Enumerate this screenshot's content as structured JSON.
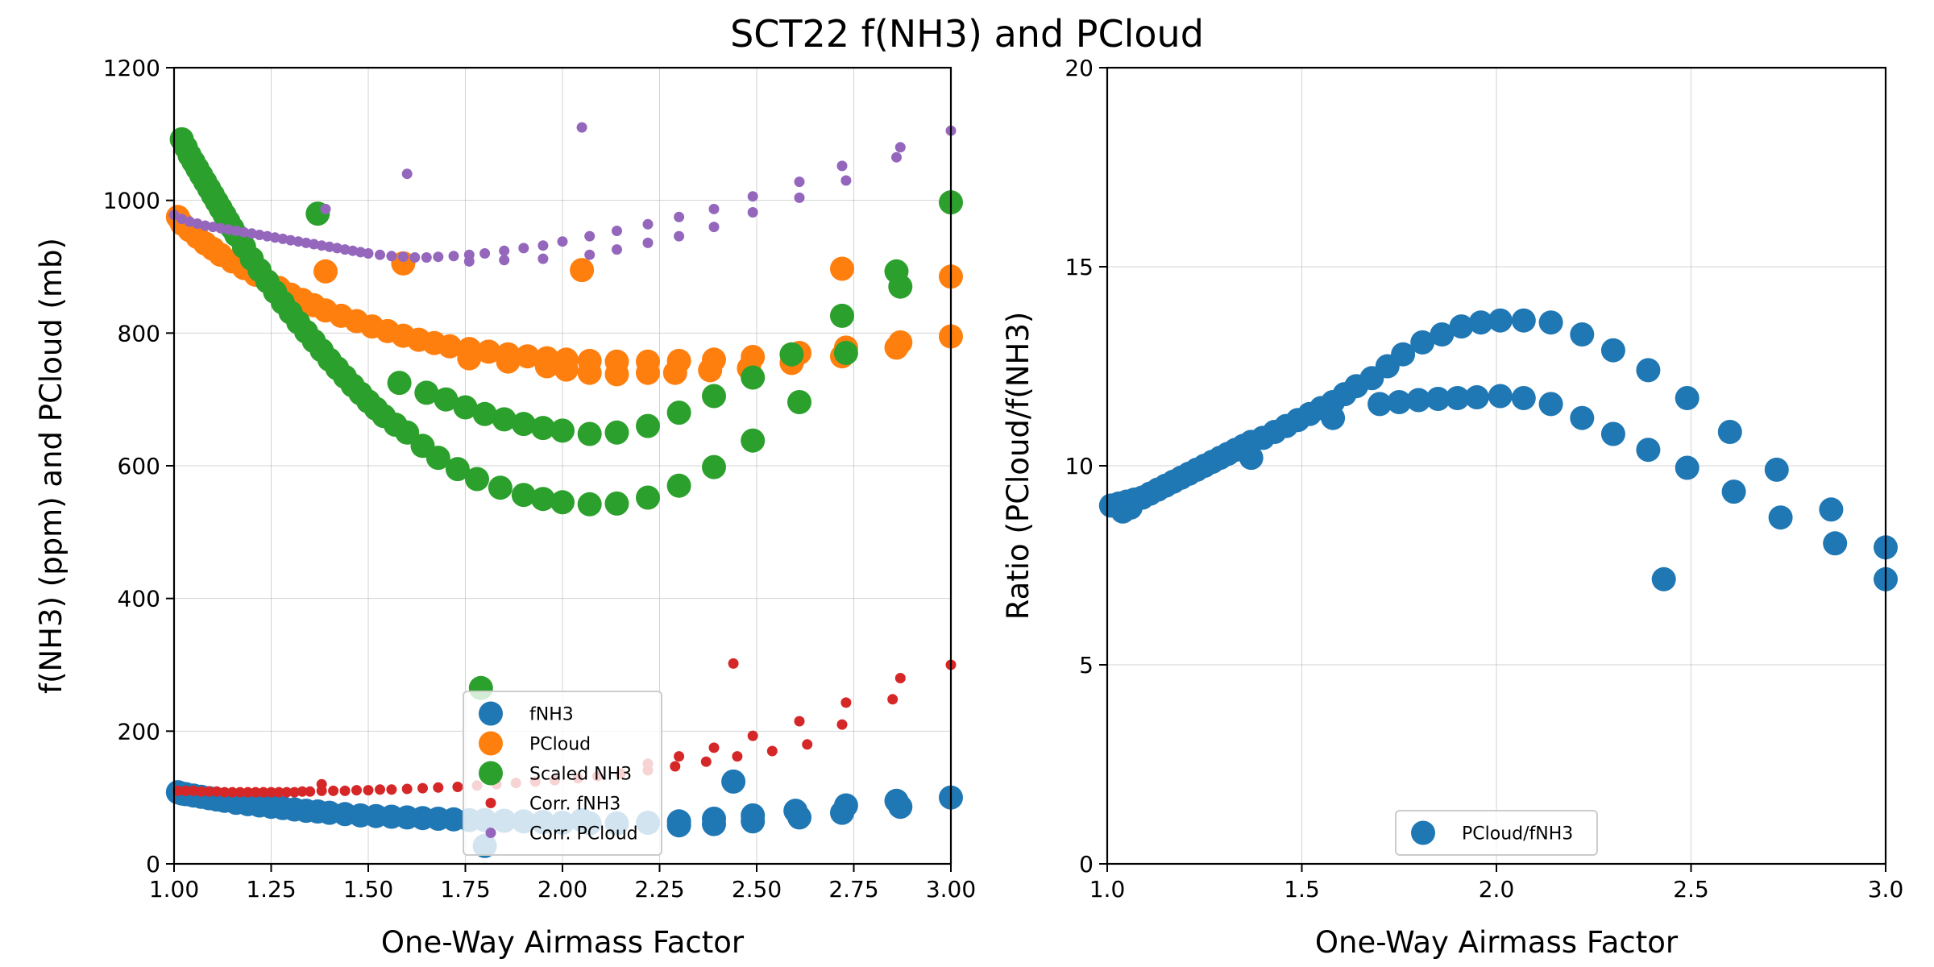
{
  "title": "SCT22 f(NH3) and PCloud",
  "colors": {
    "fNH3": "#1f77b4",
    "PCloud": "#ff7f0e",
    "ScaledNH3": "#2ca02c",
    "CorrfNH3": "#d62728",
    "CorrPCloud": "#9467bd"
  },
  "chart_data": [
    {
      "type": "scatter",
      "xlabel": "One-Way Airmass Factor",
      "ylabel": "f(NH3) (ppm) and PCloud (mb)",
      "xlim": [
        1.0,
        3.0
      ],
      "ylim": [
        0,
        1200
      ],
      "xticks": [
        "1.00",
        "1.25",
        "1.50",
        "1.75",
        "2.00",
        "2.25",
        "2.50",
        "2.75",
        "3.00"
      ],
      "yticks": [
        "0",
        "200",
        "400",
        "600",
        "800",
        "1000",
        "1200"
      ],
      "grid": true,
      "legend_position": "lower-center",
      "series": [
        {
          "name": "fNH3",
          "color": "#1f77b4",
          "size": "large",
          "x": [
            1.01,
            1.02,
            1.03,
            1.05,
            1.07,
            1.09,
            1.11,
            1.13,
            1.16,
            1.19,
            1.22,
            1.25,
            1.28,
            1.31,
            1.34,
            1.37,
            1.4,
            1.44,
            1.48,
            1.52,
            1.56,
            1.6,
            1.64,
            1.68,
            1.72,
            1.76,
            1.8,
            1.8,
            1.85,
            1.9,
            1.95,
            2.0,
            2.07,
            2.14,
            2.22,
            2.3,
            2.39,
            2.44,
            2.49,
            2.6,
            2.73,
            2.86,
            3.0,
            2.05,
            2.3,
            2.39,
            2.49,
            2.61,
            2.72,
            2.87
          ],
          "y": [
            108,
            106,
            105,
            103,
            101,
            99,
            97,
            95,
            92,
            90,
            88,
            86,
            84,
            82,
            80,
            79,
            77,
            75,
            73,
            72,
            71,
            70,
            69,
            68,
            67,
            66,
            66,
            27,
            65,
            64,
            63,
            62,
            61,
            61,
            62,
            64,
            68,
            124,
            73,
            80,
            88,
            95,
            100,
            66,
            58,
            60,
            64,
            70,
            77,
            86
          ]
        },
        {
          "name": "PCloud",
          "color": "#ff7f0e",
          "size": "large",
          "x": [
            1.01,
            1.02,
            1.04,
            1.06,
            1.08,
            1.1,
            1.12,
            1.15,
            1.18,
            1.21,
            1.24,
            1.27,
            1.3,
            1.33,
            1.36,
            1.39,
            1.43,
            1.47,
            1.51,
            1.55,
            1.59,
            1.63,
            1.67,
            1.71,
            1.76,
            1.81,
            1.86,
            1.91,
            1.96,
            2.01,
            2.07,
            2.14,
            2.22,
            2.3,
            2.39,
            2.49,
            2.61,
            2.73,
            2.87,
            3.0,
            1.39,
            1.59,
            2.05,
            2.72,
            1.76,
            1.86,
            1.96,
            2.01,
            2.07,
            2.14,
            2.22,
            2.29,
            2.38,
            2.48,
            2.59,
            2.72,
            2.86,
            3.0
          ],
          "y": [
            975,
            965,
            955,
            945,
            935,
            927,
            918,
            908,
            898,
            888,
            878,
            868,
            858,
            850,
            842,
            834,
            826,
            818,
            810,
            803,
            796,
            790,
            785,
            780,
            776,
            772,
            768,
            765,
            762,
            760,
            758,
            757,
            757,
            758,
            760,
            764,
            770,
            778,
            786,
            795,
            893,
            905,
            895,
            897,
            762,
            757,
            750,
            745,
            740,
            738,
            740,
            740,
            744,
            747,
            755,
            765,
            778,
            885
          ]
        },
        {
          "name": "Scaled NH3",
          "color": "#2ca02c",
          "size": "large",
          "x": [
            1.02,
            1.03,
            1.04,
            1.05,
            1.06,
            1.07,
            1.08,
            1.09,
            1.1,
            1.11,
            1.12,
            1.13,
            1.14,
            1.15,
            1.16,
            1.18,
            1.2,
            1.22,
            1.24,
            1.26,
            1.28,
            1.3,
            1.32,
            1.34,
            1.36,
            1.38,
            1.4,
            1.42,
            1.44,
            1.46,
            1.48,
            1.5,
            1.52,
            1.54,
            1.57,
            1.6,
            1.64,
            1.68,
            1.73,
            1.78,
            1.84,
            1.9,
            1.95,
            2.0,
            2.07,
            2.14,
            2.22,
            2.3,
            2.39,
            2.49,
            2.61,
            2.73,
            2.87,
            3.0,
            1.58,
            1.65,
            1.7,
            1.75,
            1.8,
            1.85,
            1.9,
            1.95,
            2.0,
            2.07,
            2.14,
            2.22,
            2.3,
            2.39,
            2.49,
            2.59,
            2.72,
            2.86,
            1.37,
            1.79
          ],
          "y": [
            1092,
            1080,
            1068,
            1058,
            1048,
            1038,
            1028,
            1018,
            1008,
            998,
            988,
            978,
            968,
            958,
            948,
            930,
            912,
            895,
            878,
            862,
            846,
            831,
            816,
            802,
            788,
            774,
            760,
            747,
            734,
            721,
            709,
            697,
            686,
            675,
            662,
            650,
            630,
            612,
            595,
            580,
            567,
            556,
            550,
            545,
            542,
            543,
            552,
            570,
            598,
            638,
            696,
            770,
            870,
            997,
            725,
            710,
            700,
            688,
            678,
            670,
            663,
            657,
            653,
            648,
            650,
            660,
            680,
            705,
            733,
            768,
            826,
            893,
            980,
            265
          ]
        },
        {
          "name": "Corr. fNH3",
          "color": "#d62728",
          "size": "small",
          "x": [
            1.01,
            1.03,
            1.05,
            1.07,
            1.09,
            1.11,
            1.13,
            1.15,
            1.17,
            1.19,
            1.21,
            1.23,
            1.25,
            1.27,
            1.29,
            1.31,
            1.33,
            1.35,
            1.38,
            1.41,
            1.44,
            1.47,
            1.5,
            1.53,
            1.56,
            1.6,
            1.64,
            1.68,
            1.73,
            1.78,
            1.83,
            1.88,
            1.93,
            1.98,
            2.04,
            2.09,
            2.15,
            2.22,
            2.29,
            2.37,
            2.45,
            2.54,
            2.63,
            2.72,
            2.85,
            3.0,
            1.38,
            2.22,
            2.3,
            2.39,
            2.49,
            2.61,
            2.73,
            2.87,
            2.44
          ],
          "y": [
            110,
            110,
            110,
            109,
            109,
            109,
            108,
            108,
            108,
            108,
            108,
            108,
            108,
            108,
            108,
            108,
            109,
            109,
            110,
            110,
            110,
            111,
            111,
            112,
            112,
            113,
            114,
            115,
            116,
            118,
            120,
            122,
            124,
            126,
            129,
            132,
            136,
            141,
            147,
            154,
            162,
            170,
            180,
            210,
            248,
            300,
            120,
            151,
            162,
            175,
            193,
            215,
            243,
            280,
            302
          ]
        },
        {
          "name": "Corr. PCloud",
          "color": "#9467bd",
          "size": "small",
          "x": [
            1.0,
            1.02,
            1.04,
            1.06,
            1.08,
            1.1,
            1.12,
            1.14,
            1.16,
            1.18,
            1.2,
            1.22,
            1.24,
            1.26,
            1.28,
            1.3,
            1.32,
            1.34,
            1.36,
            1.38,
            1.4,
            1.42,
            1.44,
            1.46,
            1.48,
            1.5,
            1.53,
            1.56,
            1.59,
            1.62,
            1.65,
            1.68,
            1.72,
            1.76,
            1.8,
            1.85,
            1.9,
            1.95,
            2.0,
            2.07,
            2.14,
            2.22,
            2.3,
            2.39,
            2.49,
            2.61,
            2.72,
            2.87,
            3.0,
            1.39,
            1.6,
            2.05,
            1.76,
            1.85,
            1.95,
            2.07,
            2.14,
            2.22,
            2.3,
            2.39,
            2.49,
            2.61,
            2.73,
            2.86
          ],
          "y": [
            978,
            972,
            968,
            965,
            962,
            960,
            958,
            956,
            954,
            952,
            950,
            948,
            946,
            944,
            942,
            940,
            938,
            936,
            934,
            932,
            930,
            928,
            926,
            924,
            922,
            920,
            918,
            916,
            915,
            914,
            914,
            915,
            916,
            918,
            920,
            924,
            928,
            932,
            938,
            946,
            954,
            964,
            975,
            987,
            1006,
            1028,
            1052,
            1080,
            1105,
            987,
            1040,
            1110,
            908,
            910,
            912,
            918,
            926,
            936,
            946,
            960,
            982,
            1004,
            1030,
            1065
          ]
        }
      ]
    },
    {
      "type": "scatter",
      "xlabel": "One-Way Airmass Factor",
      "ylabel": "Ratio (PCloud/f(NH3)",
      "xlim": [
        1.0,
        3.0
      ],
      "ylim": [
        0,
        20
      ],
      "xticks": [
        "1.0",
        "1.5",
        "2.0",
        "2.5",
        "3.0"
      ],
      "yticks": [
        "0",
        "5",
        "10",
        "15",
        "20"
      ],
      "grid": true,
      "legend_position": "lower-center",
      "series": [
        {
          "name": "PCloud/fNH3",
          "color": "#1f77b4",
          "size": "large",
          "x": [
            1.01,
            1.02,
            1.03,
            1.05,
            1.07,
            1.09,
            1.11,
            1.13,
            1.15,
            1.17,
            1.19,
            1.21,
            1.23,
            1.25,
            1.27,
            1.29,
            1.31,
            1.33,
            1.35,
            1.37,
            1.4,
            1.43,
            1.46,
            1.49,
            1.52,
            1.55,
            1.58,
            1.61,
            1.64,
            1.68,
            1.72,
            1.76,
            1.81,
            1.86,
            1.91,
            1.96,
            2.01,
            2.07,
            2.14,
            2.22,
            2.3,
            2.39,
            2.49,
            2.6,
            2.72,
            2.86,
            3.0,
            1.7,
            1.75,
            1.8,
            1.85,
            1.9,
            1.95,
            2.01,
            2.07,
            2.14,
            2.22,
            2.3,
            2.39,
            2.49,
            2.61,
            2.73,
            2.87,
            3.0,
            2.43,
            1.04,
            1.06,
            1.37,
            1.58
          ],
          "y": [
            9.0,
            9.0,
            9.05,
            9.1,
            9.15,
            9.2,
            9.3,
            9.4,
            9.5,
            9.6,
            9.7,
            9.8,
            9.9,
            10.0,
            10.1,
            10.2,
            10.3,
            10.4,
            10.5,
            10.6,
            10.7,
            10.85,
            11.0,
            11.15,
            11.3,
            11.45,
            11.6,
            11.8,
            12.0,
            12.2,
            12.5,
            12.8,
            13.1,
            13.3,
            13.5,
            13.6,
            13.65,
            13.65,
            13.6,
            13.3,
            12.9,
            12.4,
            11.7,
            10.85,
            9.9,
            8.9,
            7.95,
            11.55,
            11.6,
            11.65,
            11.68,
            11.7,
            11.72,
            11.75,
            11.7,
            11.55,
            11.2,
            10.8,
            10.4,
            9.95,
            9.35,
            8.7,
            8.05,
            7.15,
            7.15,
            8.85,
            8.95,
            10.2,
            11.2
          ]
        }
      ]
    }
  ]
}
